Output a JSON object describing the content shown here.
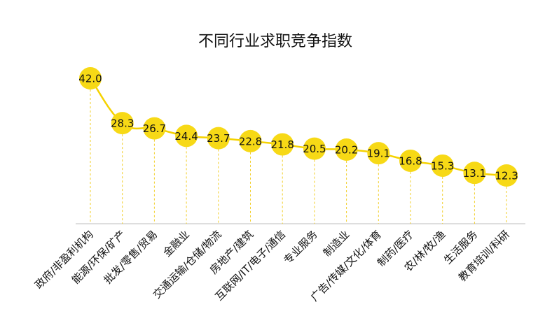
{
  "chart_data": {
    "type": "line",
    "title": "不同行业求职竞争指数",
    "xlabel": "",
    "ylabel": "",
    "categories": [
      "政府/非盈利机构",
      "能源/环保/矿产",
      "批发/零售/贸易",
      "金融业",
      "交通运输/仓储/物流",
      "房地产/建筑",
      "互联网/IT/电子/通信",
      "专业服务",
      "制造业",
      "广告/传媒/文化/体育",
      "制药/医疗",
      "农/林/牧/渔",
      "生活服务",
      "教育培训/科研"
    ],
    "values": [
      42.0,
      28.3,
      26.7,
      24.4,
      23.7,
      22.8,
      21.8,
      20.5,
      20.2,
      19.1,
      16.8,
      15.3,
      13.1,
      12.3
    ],
    "value_labels": [
      "42.0",
      "28.3",
      "26.7",
      "24.4",
      "23.7",
      "22.8",
      "21.8",
      "20.5",
      "20.2",
      "19.1",
      "16.8",
      "15.3",
      "13.1",
      "12.3"
    ],
    "grid": false,
    "legend": "none",
    "colors": {
      "line": "#f5d200",
      "marker": "#f7d916",
      "drop_line": "#f2cf2a",
      "axis": "#bdbdbd"
    }
  }
}
